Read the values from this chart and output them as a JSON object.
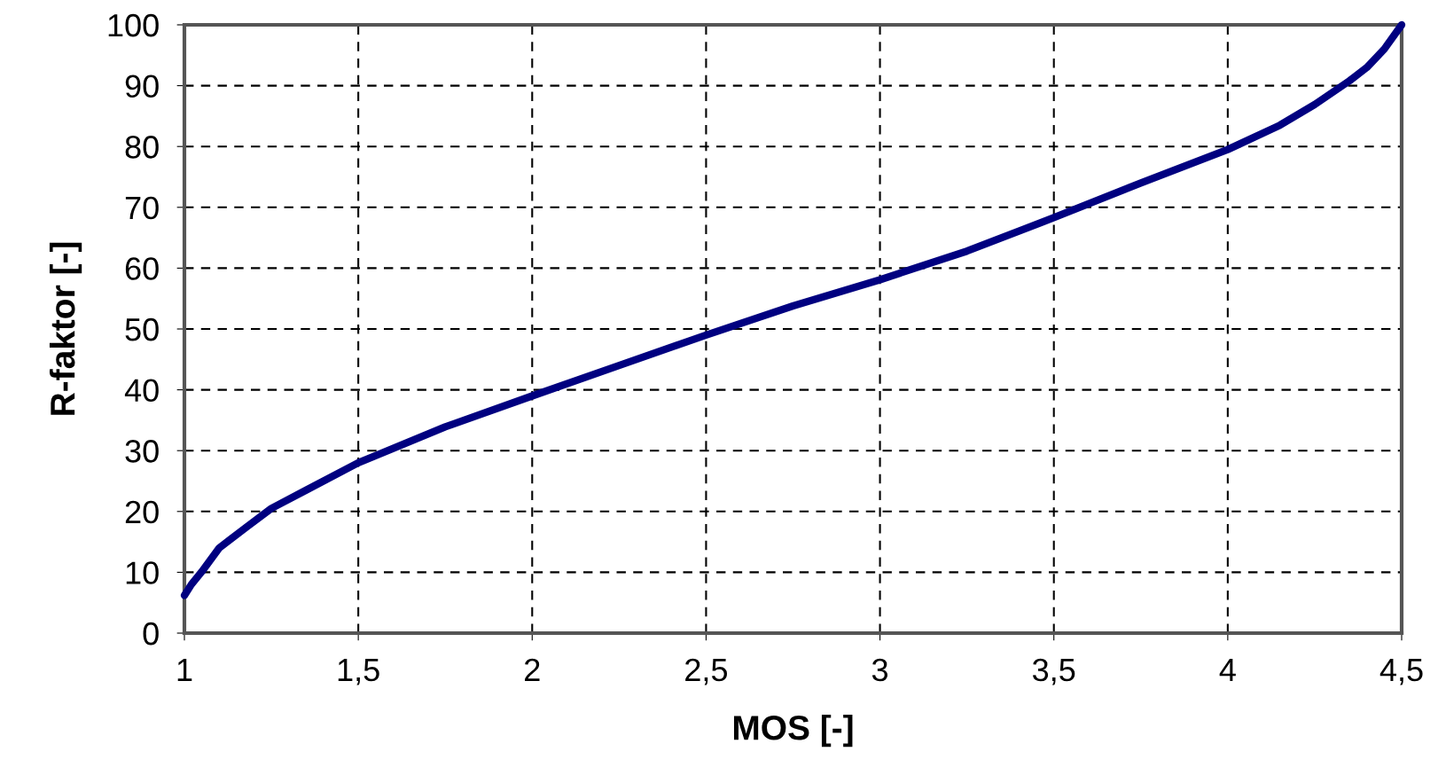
{
  "chart_data": {
    "type": "line",
    "xlabel": "MOS [-]",
    "ylabel": "R-faktor [-]",
    "x": [
      1,
      1.02,
      1.05,
      1.1,
      1.18,
      1.25,
      1.35,
      1.5,
      1.75,
      2,
      2.25,
      2.5,
      2.75,
      3,
      3.25,
      3.5,
      3.75,
      4,
      4.15,
      4.25,
      4.35,
      4.4,
      4.45,
      4.5
    ],
    "series": [
      {
        "color": "#000080",
        "values": [
          6.2,
          8,
          10.1,
          14,
          17.5,
          20.5,
          23.5,
          28,
          33.9,
          39,
          44,
          49,
          53.8,
          58.1,
          62.8,
          68.3,
          74,
          79.5,
          83.5,
          86.9,
          90.8,
          93,
          96,
          100
        ]
      }
    ],
    "xlim": [
      1,
      4.5
    ],
    "ylim": [
      0,
      100
    ],
    "xticks": [
      1,
      {
        "value": 1.5,
        "label": "1,5"
      },
      2,
      {
        "value": 2.5,
        "label": "2,5"
      },
      3,
      {
        "value": 3.5,
        "label": "3,5"
      },
      4,
      {
        "value": 4.5,
        "label": "4,5"
      }
    ],
    "yticks": [
      0,
      10,
      20,
      30,
      40,
      50,
      60,
      70,
      80,
      90,
      100
    ],
    "grid": true,
    "line_style": "solid",
    "marker": "none"
  }
}
